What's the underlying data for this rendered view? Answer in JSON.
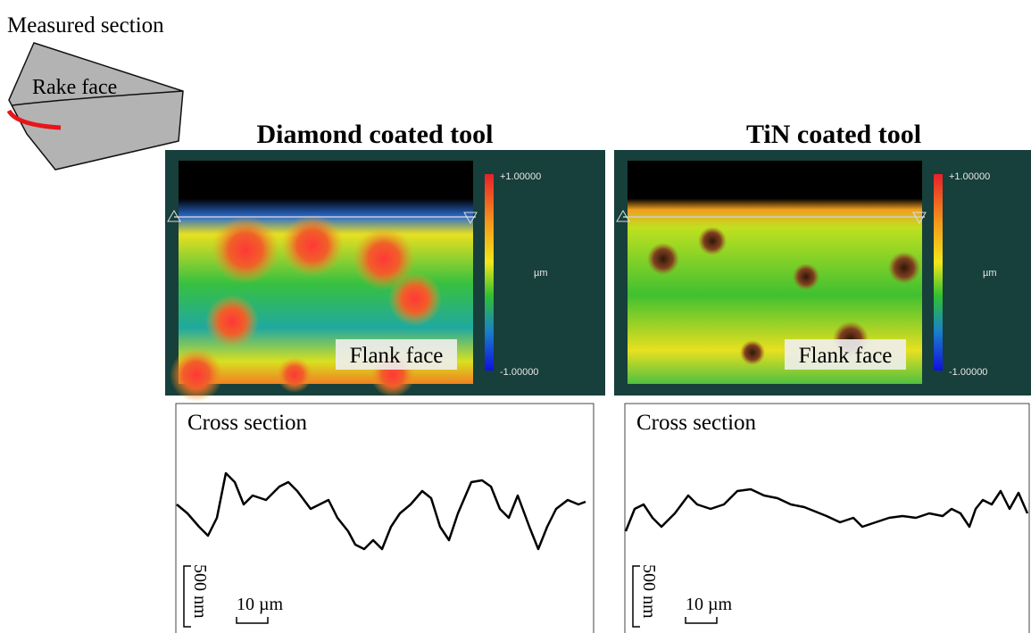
{
  "header": {
    "label": "Measured section",
    "tool_label": "Rake face"
  },
  "panels": [
    {
      "title": "Diamond coated tool",
      "colorbar": {
        "max": "+1.00000",
        "unit": "µm",
        "min": "-1.00000"
      },
      "image_label": "Flank face",
      "profile_title": "Cross section",
      "scale_y": "500 nm",
      "scale_x": "10 µm"
    },
    {
      "title": "TiN coated tool",
      "colorbar": {
        "max": "+1.00000",
        "unit": "µm",
        "min": "-1.00000"
      },
      "image_label": "Flank face",
      "profile_title": "Cross section",
      "scale_y": "500 nm",
      "scale_x": "10 µm"
    }
  ]
}
